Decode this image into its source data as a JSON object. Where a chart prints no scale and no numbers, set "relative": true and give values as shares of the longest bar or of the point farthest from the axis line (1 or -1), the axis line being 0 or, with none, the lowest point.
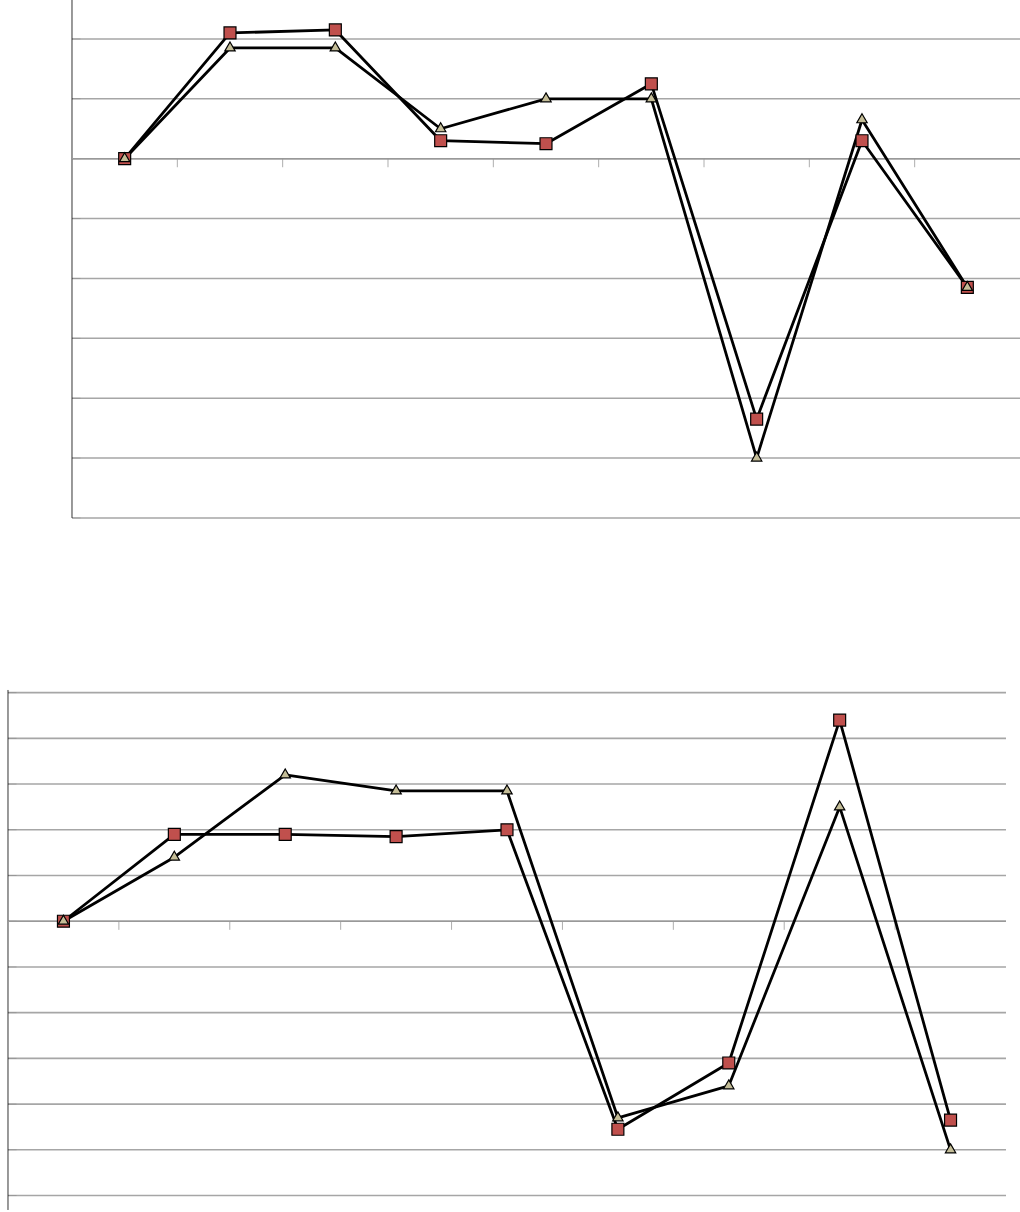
{
  "chart_data": [
    {
      "type": "line",
      "relative": true,
      "categories": [
        null,
        null,
        null,
        null,
        null,
        null,
        null,
        null,
        null
      ],
      "grid": "y",
      "series": [
        {
          "color": "#000000",
          "colors": [
            "#c0504d",
            "#c0504d",
            "#c0504d",
            "#c0504d",
            "#c0504d",
            "#c0504d",
            "#c0504d",
            "#c0504d",
            "#c0504d"
          ],
          "marker": "square",
          "values": [
            0,
            0.42,
            0.43,
            0.06,
            0.05,
            0.25,
            -0.87,
            0.06,
            -0.43
          ]
        },
        {
          "color": "#000000",
          "colors": [
            "#c4bd97",
            "#c4bd97",
            "#c4bd97",
            "#c4bd97",
            "#c4bd97",
            "#c4bd97",
            "#c4bd97",
            "#c4bd97",
            "#c4bd97"
          ],
          "marker": "triangle",
          "values": [
            0,
            0.37,
            0.37,
            0.1,
            0.2,
            0.2,
            -1,
            0.13,
            -0.43
          ]
        }
      ]
    },
    {
      "type": "line",
      "relative": true,
      "categories": [
        null,
        null,
        null,
        null,
        null,
        null,
        null,
        null,
        null
      ],
      "grid": "y",
      "series": [
        {
          "color": "#000000",
          "colors": [
            "#c0504d",
            "#c0504d",
            "#c0504d",
            "#c0504d",
            "#c0504d",
            "#c0504d",
            "#c0504d",
            "#c0504d",
            "#c0504d"
          ],
          "marker": "square",
          "values": [
            0,
            0.38,
            0.38,
            0.37,
            0.4,
            -0.91,
            -0.62,
            0.88,
            -0.87
          ]
        },
        {
          "color": "#000000",
          "colors": [
            "#c4bd97",
            "#c4bd97",
            "#c4bd97",
            "#c4bd97",
            "#c4bd97",
            "#c4bd97",
            "#c4bd97",
            "#c4bd97",
            "#c4bd97"
          ],
          "marker": "triangle",
          "values": [
            0,
            0.28,
            0.64,
            0.57,
            0.57,
            -0.86,
            -0.72,
            0.5,
            -1
          ]
        }
      ]
    }
  ]
}
